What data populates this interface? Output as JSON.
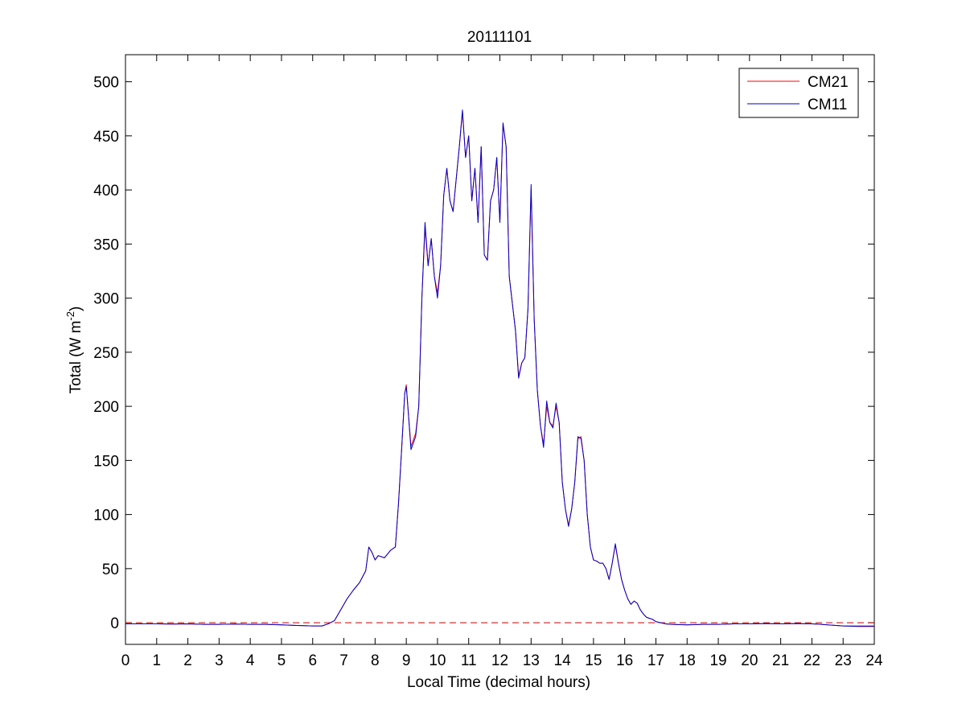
{
  "chart_data": {
    "type": "line",
    "title": "20111101",
    "xlabel": "Local Time (decimal hours)",
    "ylabel_main": "Total (W m",
    "ylabel_sup": "-2",
    "ylabel_close": ")",
    "xlim": [
      0,
      24
    ],
    "ylim": [
      -20,
      525
    ],
    "xticks": [
      0,
      1,
      2,
      3,
      4,
      5,
      6,
      7,
      8,
      9,
      10,
      11,
      12,
      13,
      14,
      15,
      16,
      17,
      18,
      19,
      20,
      21,
      22,
      23,
      24
    ],
    "yticks": [
      0,
      50,
      100,
      150,
      200,
      250,
      300,
      350,
      400,
      450,
      500
    ],
    "grid": false,
    "legend_position": "top-right",
    "reference_line": {
      "y": 0,
      "color": "#cc0000",
      "style": "dashed"
    },
    "series": [
      {
        "name": "CM21",
        "color": "#ff0000",
        "points": [
          [
            0,
            -1
          ],
          [
            0.5,
            -1
          ],
          [
            1,
            -1
          ],
          [
            1.5,
            -1.2
          ],
          [
            2,
            -1
          ],
          [
            2.5,
            -1.5
          ],
          [
            3,
            -1.5
          ],
          [
            3.5,
            -1.2
          ],
          [
            4,
            -1.5
          ],
          [
            4.5,
            -1.5
          ],
          [
            5,
            -2
          ],
          [
            5.5,
            -2.5
          ],
          [
            6,
            -3
          ],
          [
            6.3,
            -3
          ],
          [
            6.5,
            -1
          ],
          [
            6.7,
            2
          ],
          [
            6.9,
            12
          ],
          [
            7.1,
            22
          ],
          [
            7.3,
            30
          ],
          [
            7.5,
            37
          ],
          [
            7.7,
            48
          ],
          [
            7.8,
            70
          ],
          [
            7.9,
            65
          ],
          [
            8.0,
            58
          ],
          [
            8.1,
            62
          ],
          [
            8.3,
            60
          ],
          [
            8.5,
            67
          ],
          [
            8.65,
            70
          ],
          [
            8.75,
            110
          ],
          [
            8.85,
            160
          ],
          [
            8.95,
            212
          ],
          [
            9.0,
            220
          ],
          [
            9.05,
            200
          ],
          [
            9.15,
            163
          ],
          [
            9.3,
            175
          ],
          [
            9.4,
            200
          ],
          [
            9.5,
            300
          ],
          [
            9.6,
            365
          ],
          [
            9.7,
            330
          ],
          [
            9.8,
            355
          ],
          [
            9.9,
            320
          ],
          [
            10.0,
            305
          ],
          [
            10.1,
            330
          ],
          [
            10.2,
            395
          ],
          [
            10.3,
            420
          ],
          [
            10.4,
            390
          ],
          [
            10.5,
            380
          ],
          [
            10.6,
            410
          ],
          [
            10.7,
            440
          ],
          [
            10.8,
            472
          ],
          [
            10.9,
            430
          ],
          [
            11.0,
            450
          ],
          [
            11.1,
            390
          ],
          [
            11.2,
            420
          ],
          [
            11.3,
            370
          ],
          [
            11.4,
            440
          ],
          [
            11.5,
            340
          ],
          [
            11.6,
            335
          ],
          [
            11.7,
            390
          ],
          [
            11.8,
            400
          ],
          [
            11.9,
            430
          ],
          [
            12.0,
            370
          ],
          [
            12.1,
            460
          ],
          [
            12.2,
            440
          ],
          [
            12.3,
            320
          ],
          [
            12.4,
            295
          ],
          [
            12.5,
            270
          ],
          [
            12.6,
            228
          ],
          [
            12.7,
            240
          ],
          [
            12.8,
            245
          ],
          [
            12.9,
            290
          ],
          [
            13.0,
            400
          ],
          [
            13.1,
            280
          ],
          [
            13.2,
            215
          ],
          [
            13.3,
            182
          ],
          [
            13.4,
            165
          ],
          [
            13.5,
            200
          ],
          [
            13.6,
            185
          ],
          [
            13.7,
            182
          ],
          [
            13.8,
            200
          ],
          [
            13.9,
            185
          ],
          [
            14.0,
            130
          ],
          [
            14.1,
            105
          ],
          [
            14.2,
            90
          ],
          [
            14.3,
            105
          ],
          [
            14.4,
            130
          ],
          [
            14.5,
            170
          ],
          [
            14.6,
            172
          ],
          [
            14.7,
            150
          ],
          [
            14.8,
            100
          ],
          [
            14.9,
            70
          ],
          [
            15.0,
            58
          ],
          [
            15.1,
            57
          ],
          [
            15.2,
            55
          ],
          [
            15.3,
            55
          ],
          [
            15.4,
            50
          ],
          [
            15.5,
            40
          ],
          [
            15.6,
            55
          ],
          [
            15.7,
            72
          ],
          [
            15.8,
            55
          ],
          [
            15.9,
            40
          ],
          [
            16.0,
            30
          ],
          [
            16.1,
            22
          ],
          [
            16.2,
            17
          ],
          [
            16.3,
            20
          ],
          [
            16.4,
            18
          ],
          [
            16.5,
            12
          ],
          [
            16.6,
            8
          ],
          [
            16.7,
            5
          ],
          [
            16.8,
            4
          ],
          [
            16.9,
            3
          ],
          [
            17.0,
            1
          ],
          [
            17.3,
            -1
          ],
          [
            17.5,
            -1.5
          ],
          [
            18,
            -2
          ],
          [
            18.5,
            -1.5
          ],
          [
            19,
            -1.5
          ],
          [
            19.5,
            -1
          ],
          [
            20,
            -1
          ],
          [
            20.5,
            -0.8
          ],
          [
            21,
            -1
          ],
          [
            21.5,
            -0.8
          ],
          [
            22,
            -1
          ],
          [
            22.3,
            -1.5
          ],
          [
            22.5,
            -2
          ],
          [
            23,
            -3
          ],
          [
            23.5,
            -3
          ],
          [
            24,
            -3
          ]
        ]
      },
      {
        "name": "CM11",
        "color": "#0000cc",
        "points": [
          [
            0,
            -1
          ],
          [
            0.5,
            -1
          ],
          [
            1,
            -1
          ],
          [
            1.5,
            -1.2
          ],
          [
            2,
            -1
          ],
          [
            2.5,
            -1.5
          ],
          [
            3,
            -1.5
          ],
          [
            3.5,
            -1.2
          ],
          [
            4,
            -1.5
          ],
          [
            4.5,
            -1.5
          ],
          [
            5,
            -2
          ],
          [
            5.5,
            -2.5
          ],
          [
            6,
            -3
          ],
          [
            6.3,
            -3
          ],
          [
            6.5,
            -1
          ],
          [
            6.7,
            2
          ],
          [
            6.9,
            12
          ],
          [
            7.1,
            22
          ],
          [
            7.3,
            30
          ],
          [
            7.5,
            37
          ],
          [
            7.7,
            48
          ],
          [
            7.8,
            70
          ],
          [
            7.9,
            65
          ],
          [
            8.0,
            58
          ],
          [
            8.1,
            62
          ],
          [
            8.3,
            60
          ],
          [
            8.5,
            67
          ],
          [
            8.65,
            70
          ],
          [
            8.75,
            110
          ],
          [
            8.85,
            160
          ],
          [
            8.95,
            212
          ],
          [
            9.0,
            218
          ],
          [
            9.05,
            200
          ],
          [
            9.15,
            160
          ],
          [
            9.3,
            172
          ],
          [
            9.4,
            200
          ],
          [
            9.5,
            300
          ],
          [
            9.6,
            370
          ],
          [
            9.7,
            330
          ],
          [
            9.8,
            355
          ],
          [
            9.9,
            320
          ],
          [
            10.0,
            300
          ],
          [
            10.1,
            330
          ],
          [
            10.2,
            395
          ],
          [
            10.3,
            420
          ],
          [
            10.4,
            390
          ],
          [
            10.5,
            380
          ],
          [
            10.6,
            410
          ],
          [
            10.7,
            440
          ],
          [
            10.8,
            474
          ],
          [
            10.9,
            430
          ],
          [
            11.0,
            450
          ],
          [
            11.1,
            390
          ],
          [
            11.2,
            420
          ],
          [
            11.3,
            370
          ],
          [
            11.4,
            440
          ],
          [
            11.5,
            340
          ],
          [
            11.6,
            335
          ],
          [
            11.7,
            390
          ],
          [
            11.8,
            400
          ],
          [
            11.9,
            430
          ],
          [
            12.0,
            370
          ],
          [
            12.1,
            462
          ],
          [
            12.2,
            440
          ],
          [
            12.3,
            320
          ],
          [
            12.4,
            295
          ],
          [
            12.5,
            270
          ],
          [
            12.6,
            226
          ],
          [
            12.7,
            240
          ],
          [
            12.8,
            245
          ],
          [
            12.9,
            290
          ],
          [
            13.0,
            405
          ],
          [
            13.1,
            280
          ],
          [
            13.2,
            215
          ],
          [
            13.3,
            182
          ],
          [
            13.4,
            162
          ],
          [
            13.5,
            205
          ],
          [
            13.6,
            185
          ],
          [
            13.7,
            180
          ],
          [
            13.8,
            203
          ],
          [
            13.9,
            185
          ],
          [
            14.0,
            130
          ],
          [
            14.1,
            105
          ],
          [
            14.2,
            89
          ],
          [
            14.3,
            105
          ],
          [
            14.4,
            130
          ],
          [
            14.5,
            172
          ],
          [
            14.6,
            170
          ],
          [
            14.7,
            150
          ],
          [
            14.8,
            100
          ],
          [
            14.9,
            70
          ],
          [
            15.0,
            58
          ],
          [
            15.1,
            57
          ],
          [
            15.2,
            55
          ],
          [
            15.3,
            55
          ],
          [
            15.4,
            50
          ],
          [
            15.5,
            40
          ],
          [
            15.6,
            55
          ],
          [
            15.7,
            73
          ],
          [
            15.8,
            55
          ],
          [
            15.9,
            40
          ],
          [
            16.0,
            30
          ],
          [
            16.1,
            22
          ],
          [
            16.2,
            17
          ],
          [
            16.3,
            20
          ],
          [
            16.4,
            18
          ],
          [
            16.5,
            12
          ],
          [
            16.6,
            8
          ],
          [
            16.7,
            5
          ],
          [
            16.8,
            4
          ],
          [
            16.9,
            3
          ],
          [
            17.0,
            1
          ],
          [
            17.3,
            -1
          ],
          [
            17.5,
            -1.5
          ],
          [
            18,
            -2
          ],
          [
            18.5,
            -1.5
          ],
          [
            19,
            -1.5
          ],
          [
            19.5,
            -1
          ],
          [
            20,
            -1
          ],
          [
            20.5,
            -0.8
          ],
          [
            21,
            -1
          ],
          [
            21.5,
            -0.8
          ],
          [
            22,
            -1
          ],
          [
            22.3,
            -1.5
          ],
          [
            22.5,
            -2
          ],
          [
            23,
            -3
          ],
          [
            23.5,
            -3.5
          ],
          [
            24,
            -3.5
          ]
        ]
      }
    ]
  }
}
